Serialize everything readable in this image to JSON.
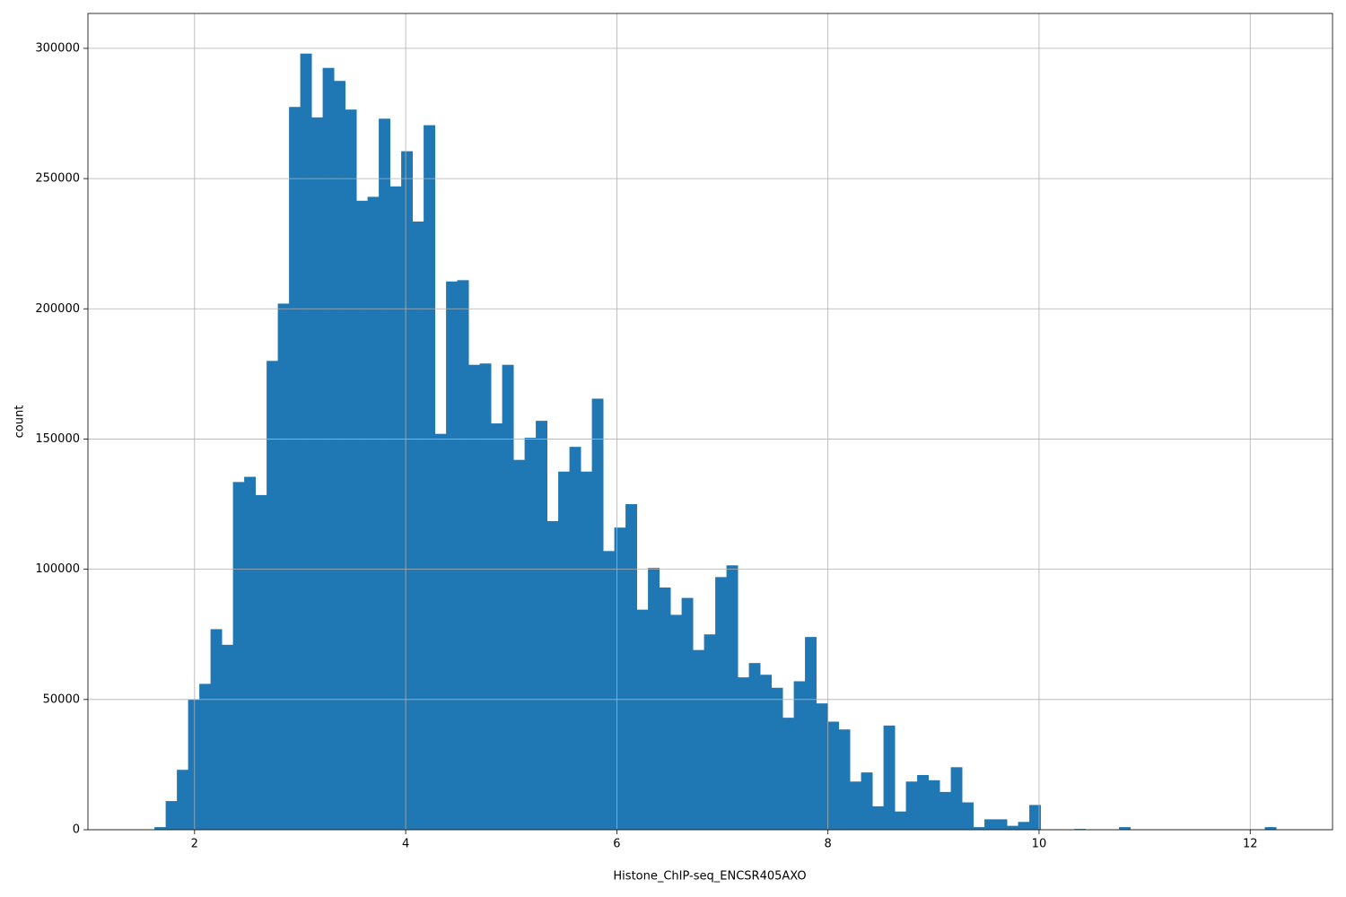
{
  "chart_data": {
    "type": "histogram",
    "xlabel": "Histone_ChIP-seq_ENCSR405AXO",
    "ylabel": "count",
    "color": "#1f77b4",
    "grid": true,
    "xlim": [
      0.99,
      12.78
    ],
    "ylim": [
      0,
      313400
    ],
    "xticks": [
      2,
      4,
      6,
      8,
      10,
      12
    ],
    "yticks": [
      0,
      50000,
      100000,
      150000,
      200000,
      250000,
      300000
    ],
    "bins": [
      1.62,
      1.72625,
      1.8325,
      1.93875,
      2.045,
      2.15125,
      2.2575,
      2.36375,
      2.47,
      2.57625,
      2.6825,
      2.78875,
      2.895,
      3.00125,
      3.1075,
      3.21375,
      3.32,
      3.42625,
      3.5325,
      3.63875,
      3.745,
      3.85125,
      3.9575,
      4.06375,
      4.17,
      4.27625,
      4.3825,
      4.48875,
      4.595,
      4.70125,
      4.8075,
      4.91375,
      5.02,
      5.12625,
      5.2325,
      5.33875,
      5.445,
      5.55125,
      5.6575,
      5.76375,
      5.87,
      5.97625,
      6.0825,
      6.18875,
      6.295,
      6.40125,
      6.5075,
      6.61375,
      6.72,
      6.82625,
      6.9325,
      7.03875,
      7.145,
      7.25125,
      7.3575,
      7.46375,
      7.57,
      7.67625,
      7.7825,
      7.88875,
      7.995,
      8.10125,
      8.2075,
      8.31375,
      8.42,
      8.52625,
      8.6325,
      8.73875,
      8.845,
      8.95125,
      9.0575,
      9.16375,
      9.27,
      9.37625,
      9.4825,
      9.58875,
      9.695,
      9.80125,
      9.9075,
      10.01375,
      10.12,
      10.22625,
      10.3325,
      10.43875,
      10.545,
      10.65125,
      10.7575,
      10.86375,
      10.97,
      11.07625,
      11.1825,
      11.28875,
      11.395,
      11.50125,
      11.6075,
      11.71375,
      11.82,
      11.92625,
      12.0325,
      12.13875,
      12.245
    ],
    "counts": [
      1000,
      11000,
      23000,
      50000,
      56000,
      77000,
      71000,
      133500,
      135500,
      128500,
      180000,
      202000,
      277500,
      298000,
      273500,
      292500,
      287500,
      276500,
      241500,
      243000,
      273000,
      247000,
      260500,
      233500,
      270500,
      152000,
      210500,
      211000,
      178500,
      179000,
      156000,
      178500,
      142000,
      150500,
      157000,
      118500,
      137500,
      147000,
      137500,
      165500,
      107000,
      116000,
      125000,
      84500,
      100500,
      93000,
      82500,
      89000,
      69000,
      75000,
      97000,
      101500,
      58500,
      64000,
      59500,
      54500,
      43000,
      57000,
      74000,
      48500,
      41500,
      38500,
      18500,
      22000,
      9000,
      40000,
      7000,
      18500,
      21000,
      19000,
      14500,
      24000,
      10500,
      1000,
      4000,
      4000,
      1500,
      3000,
      9500,
      0,
      0,
      0,
      300,
      0,
      0,
      0,
      1000,
      0,
      0,
      0,
      0,
      0,
      0,
      0,
      0,
      0,
      0,
      0,
      0,
      1000
    ]
  }
}
